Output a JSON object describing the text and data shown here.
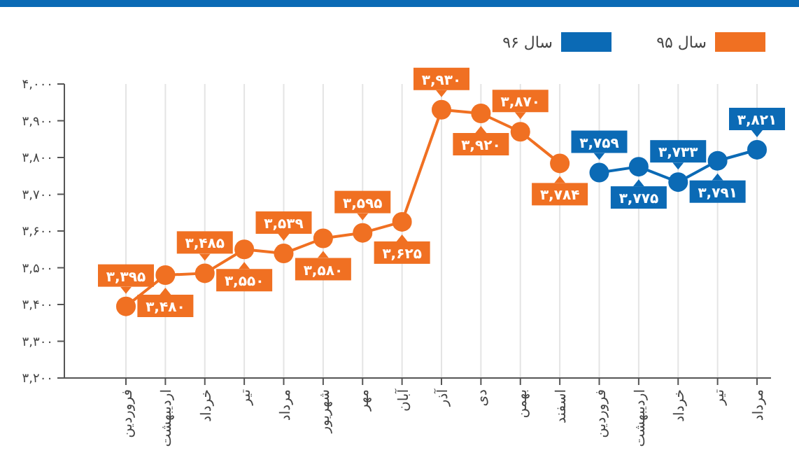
{
  "chart_data": {
    "type": "line",
    "categories": [
      "فروردین",
      "اردیبهشت",
      "خرداد",
      "تیر",
      "مرداد",
      "شهریور",
      "مهر",
      "آبان",
      "آذر",
      "دی",
      "بهمن",
      "اسفند",
      "فروردین",
      "اردیبهشت",
      "خرداد",
      "تیر",
      "مرداد"
    ],
    "series": [
      {
        "name": "سال ۹۵",
        "color": "#f07022",
        "values": [
          3395,
          3480,
          3485,
          3550,
          3539,
          3580,
          3595,
          3625,
          3930,
          3920,
          3870,
          3784,
          null,
          null,
          null,
          null,
          null
        ],
        "value_labels": [
          "۳,۳۹۵",
          "۳,۴۸۰",
          "۳,۴۸۵",
          "۳,۵۵۰",
          "۳,۵۳۹",
          "۳,۵۸۰",
          "۳,۵۹۵",
          "۳,۶۲۵",
          "۳,۹۳۰",
          "۳,۹۲۰",
          "۳,۸۷۰",
          "۳,۷۸۴",
          null,
          null,
          null,
          null,
          null
        ]
      },
      {
        "name": "سال ۹۶",
        "color": "#0b6ab5",
        "values": [
          null,
          null,
          null,
          null,
          null,
          null,
          null,
          null,
          null,
          null,
          null,
          null,
          3759,
          3775,
          3733,
          3791,
          3821
        ],
        "value_labels": [
          null,
          null,
          null,
          null,
          null,
          null,
          null,
          null,
          null,
          null,
          null,
          null,
          "۳,۷۵۹",
          "۳,۷۷۵",
          "۳,۷۳۳",
          "۳,۷۹۱",
          "۳,۸۲۱"
        ]
      }
    ],
    "ylim": [
      3200,
      4000
    ],
    "yticks": [
      {
        "value": 3200,
        "label": "۳,۲۰۰"
      },
      {
        "value": 3300,
        "label": "۳,۳۰۰"
      },
      {
        "value": 3400,
        "label": "۳,۴۰۰"
      },
      {
        "value": 3500,
        "label": "۳,۵۰۰"
      },
      {
        "value": 3600,
        "label": "۳,۶۰۰"
      },
      {
        "value": 3700,
        "label": "۳,۷۰۰"
      },
      {
        "value": 3800,
        "label": "۳,۸۰۰"
      },
      {
        "value": 3900,
        "label": "۳,۹۰۰"
      },
      {
        "value": 4000,
        "label": "۴,۰۰۰"
      }
    ],
    "grid": "x",
    "legend": "top right",
    "marker": "circle",
    "line_style": "solid"
  }
}
